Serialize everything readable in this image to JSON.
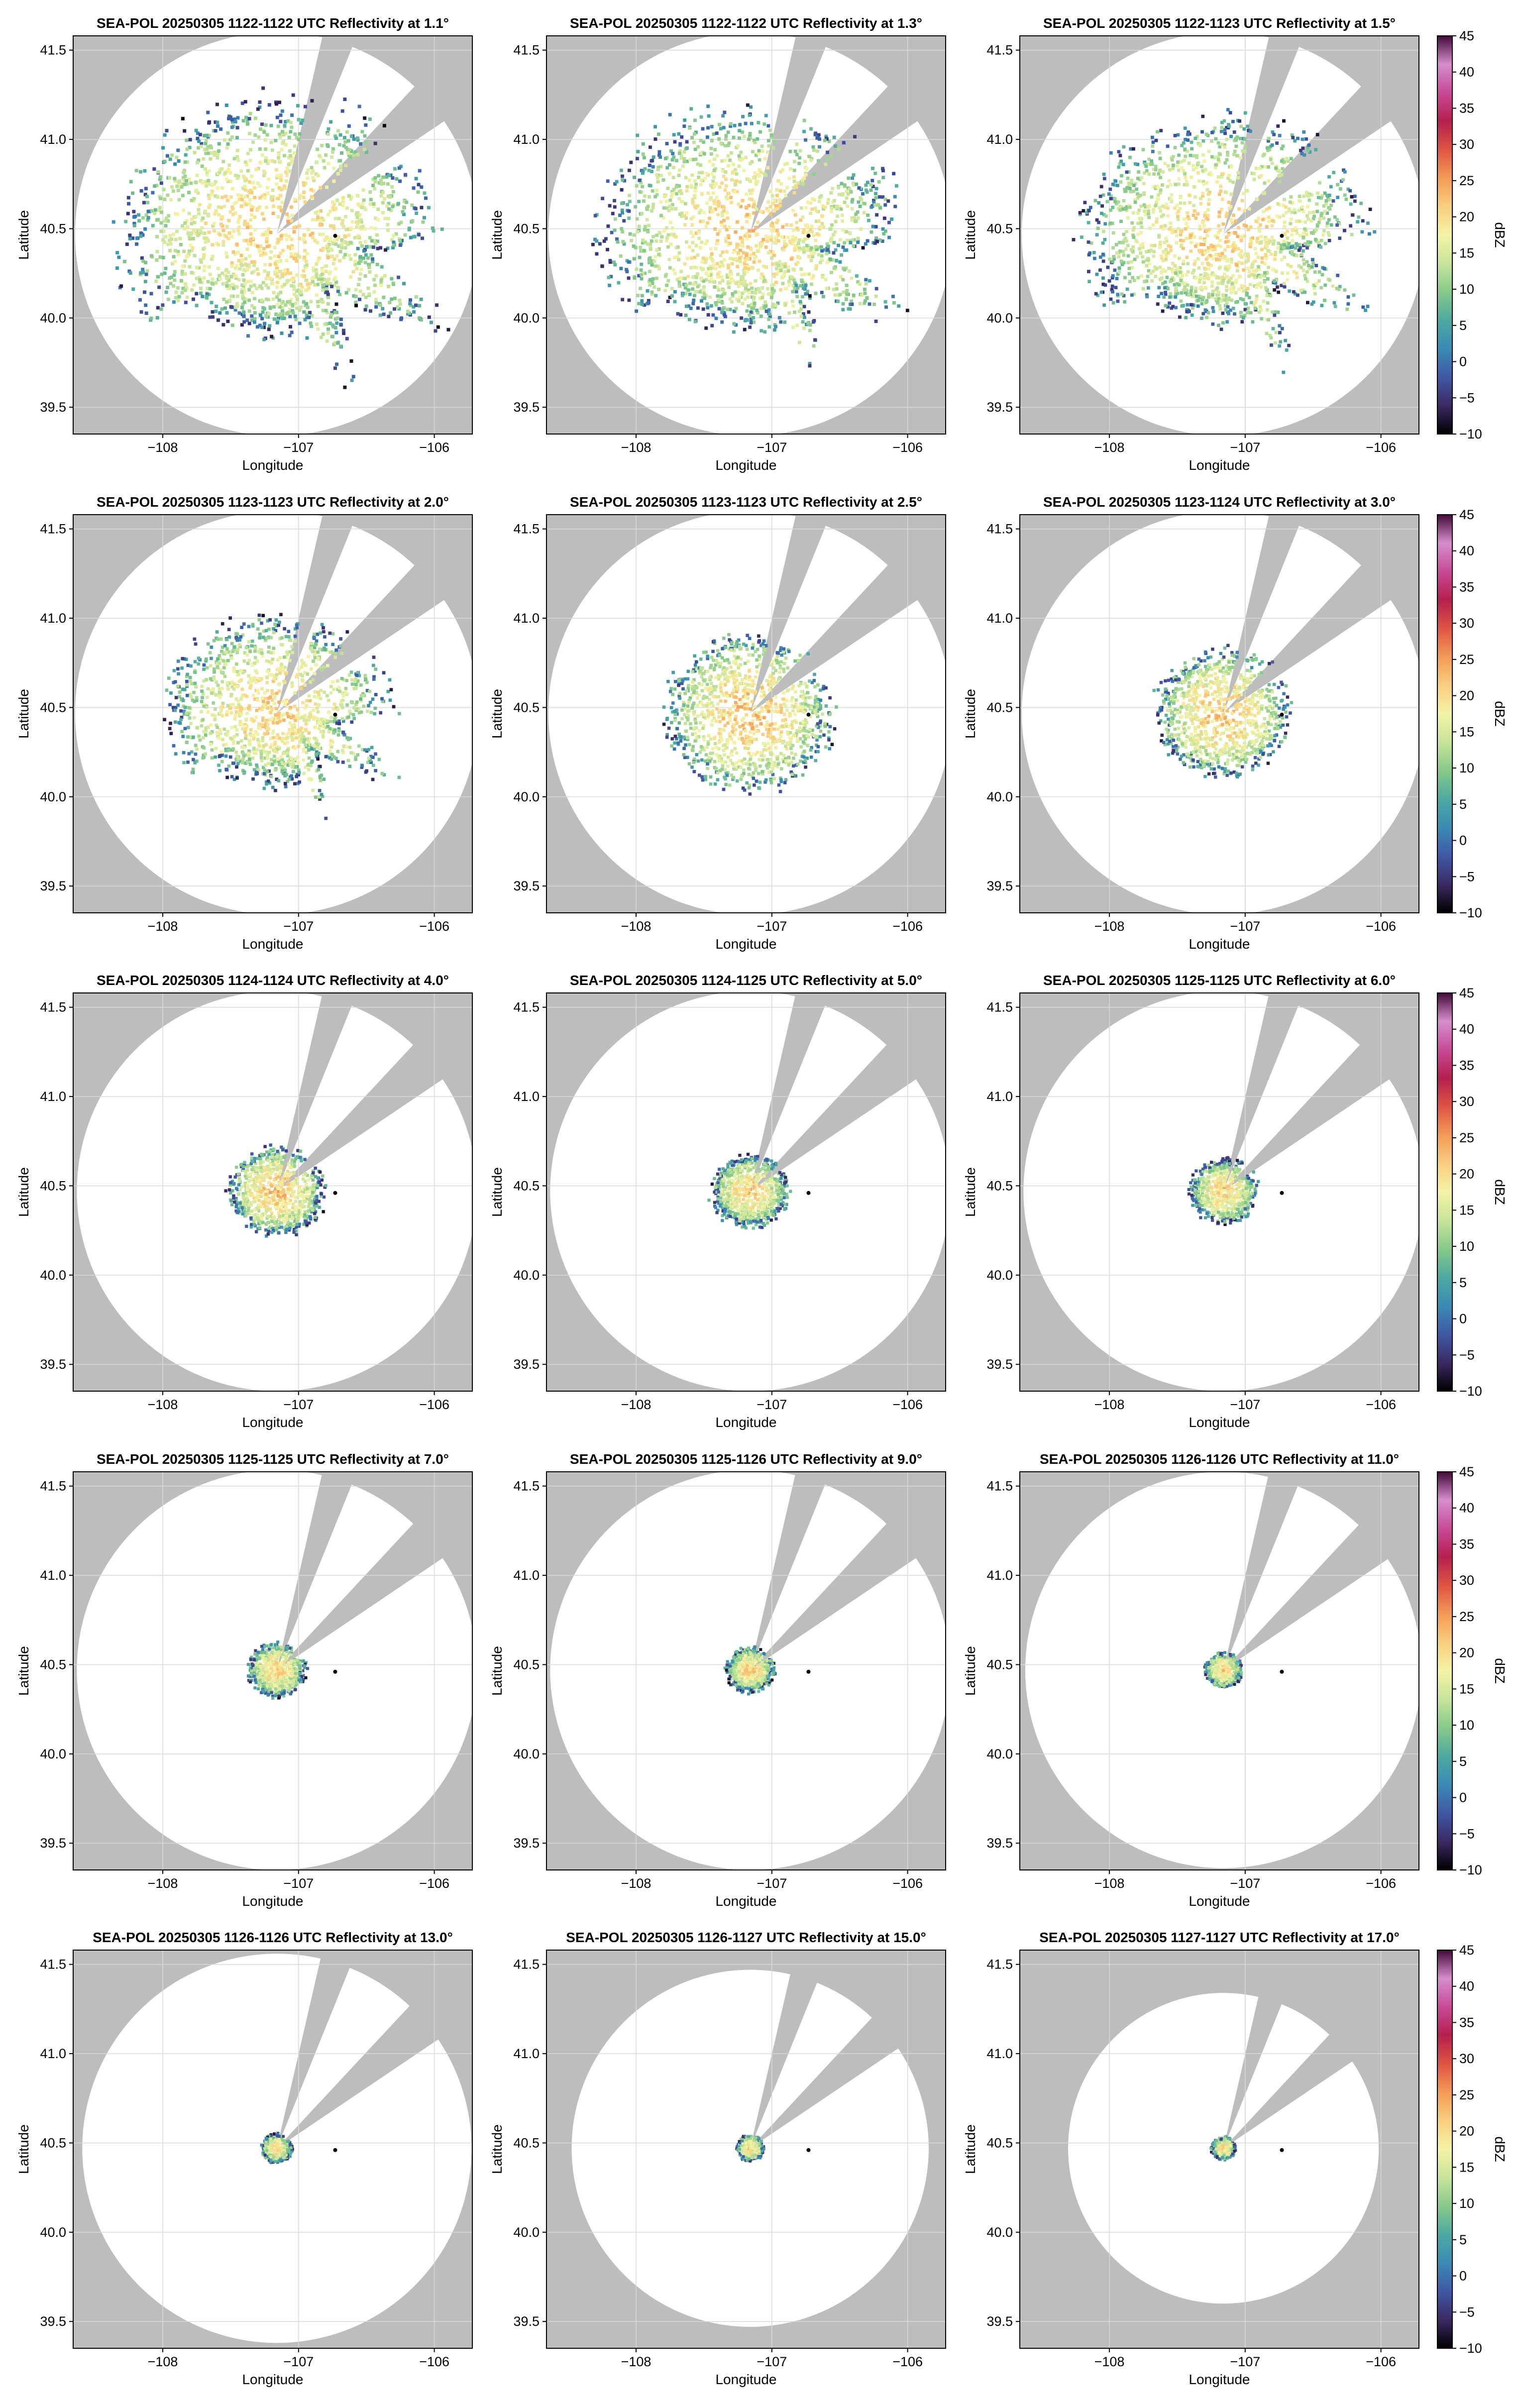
{
  "figure": {
    "shared": {
      "xlabel": "Longitude",
      "ylabel": "Latitude",
      "x_ticks": [
        -108,
        -107,
        -106
      ],
      "x_tick_labels": [
        "−108",
        "−107",
        "−106"
      ],
      "y_ticks": [
        39.5,
        40.0,
        40.5,
        41.0,
        41.5
      ],
      "y_tick_labels": [
        "39.5",
        "40.0",
        "40.5",
        "41.0",
        "41.5"
      ],
      "xlim": [
        -108.66,
        -105.72
      ],
      "ylim": [
        39.35,
        41.58
      ],
      "grid": true,
      "radar_location": [
        -107.16,
        40.47
      ],
      "marker_location": [
        -106.73,
        40.46
      ],
      "blocked_sectors_deg_from_north": [
        [
          13,
          22
        ],
        [
          43,
          56
        ]
      ]
    },
    "colorbar": {
      "label": "dBZ",
      "ticks": [
        45,
        40,
        35,
        30,
        25,
        20,
        15,
        10,
        5,
        0,
        -5,
        -10
      ],
      "tick_labels": [
        "45",
        "40",
        "35",
        "30",
        "25",
        "20",
        "15",
        "10",
        "5",
        "0",
        "−5",
        "−10"
      ],
      "range": [
        -10,
        45
      ],
      "palette": [
        "#000000",
        "#3b2a63",
        "#4058a6",
        "#3a8bb4",
        "#4ca9a0",
        "#86c98b",
        "#c8e49a",
        "#f4f3a6",
        "#f9cf7e",
        "#f39a57",
        "#e05444",
        "#b61f4f",
        "#c84a96",
        "#d58ecb",
        "#43093a"
      ]
    },
    "colors": {
      "background_gray": "#bdbdbd",
      "coverage_white": "#ffffff",
      "axis_frame": "#000000",
      "grid": "#d9d9d9"
    }
  },
  "chart_data": [
    {
      "type": "heatmap",
      "title": "SEA-POL 20250305 1122-1122 UTC Reflectivity at 1.1°",
      "elevation_deg": 1.1,
      "max_range_deg_lat": 1.13,
      "echo_extent_deg": 0.85,
      "dominant_dbz": 17
    },
    {
      "type": "heatmap",
      "title": "SEA-POL 20250305 1122-1122 UTC Reflectivity at 1.3°",
      "elevation_deg": 1.3,
      "max_range_deg_lat": 1.13,
      "echo_extent_deg": 0.8,
      "dominant_dbz": 17
    },
    {
      "type": "heatmap",
      "title": "SEA-POL 20250305 1122-1123 UTC Reflectivity at 1.5°",
      "elevation_deg": 1.5,
      "max_range_deg_lat": 1.13,
      "echo_extent_deg": 0.75,
      "dominant_dbz": 17
    },
    {
      "type": "heatmap",
      "title": "SEA-POL 20250305 1123-1123 UTC Reflectivity at 2.0°",
      "elevation_deg": 2.0,
      "max_range_deg_lat": 1.13,
      "echo_extent_deg": 0.6,
      "dominant_dbz": 17
    },
    {
      "type": "heatmap",
      "title": "SEA-POL 20250305 1123-1123 UTC Reflectivity at 2.5°",
      "elevation_deg": 2.5,
      "max_range_deg_lat": 1.13,
      "echo_extent_deg": 0.5,
      "dominant_dbz": 18
    },
    {
      "type": "heatmap",
      "title": "SEA-POL 20250305 1123-1124 UTC Reflectivity at 3.0°",
      "elevation_deg": 3.0,
      "max_range_deg_lat": 1.13,
      "echo_extent_deg": 0.4,
      "dominant_dbz": 18
    },
    {
      "type": "heatmap",
      "title": "SEA-POL 20250305 1124-1124 UTC Reflectivity at 4.0°",
      "elevation_deg": 4.0,
      "max_range_deg_lat": 1.12,
      "echo_extent_deg": 0.28,
      "dominant_dbz": 18
    },
    {
      "type": "heatmap",
      "title": "SEA-POL 20250305 1124-1125 UTC Reflectivity at 5.0°",
      "elevation_deg": 5.0,
      "max_range_deg_lat": 1.12,
      "echo_extent_deg": 0.23,
      "dominant_dbz": 17
    },
    {
      "type": "heatmap",
      "title": "SEA-POL 20250305 1125-1125 UTC Reflectivity at 6.0°",
      "elevation_deg": 6.0,
      "max_range_deg_lat": 1.12,
      "echo_extent_deg": 0.2,
      "dominant_dbz": 17
    },
    {
      "type": "heatmap",
      "title": "SEA-POL 20250305 1125-1125 UTC Reflectivity at 7.0°",
      "elevation_deg": 7.0,
      "max_range_deg_lat": 1.12,
      "echo_extent_deg": 0.17,
      "dominant_dbz": 17
    },
    {
      "type": "heatmap",
      "title": "SEA-POL 20250305 1125-1126 UTC Reflectivity at 9.0°",
      "elevation_deg": 9.0,
      "max_range_deg_lat": 1.12,
      "echo_extent_deg": 0.14,
      "dominant_dbz": 17
    },
    {
      "type": "heatmap",
      "title": "SEA-POL 20250305 1126-1126 UTC Reflectivity at 11.0°",
      "elevation_deg": 11.0,
      "max_range_deg_lat": 1.11,
      "echo_extent_deg": 0.11,
      "dominant_dbz": 17
    },
    {
      "type": "heatmap",
      "title": "SEA-POL 20250305 1126-1126 UTC Reflectivity at 13.0°",
      "elevation_deg": 13.0,
      "max_range_deg_lat": 1.09,
      "echo_extent_deg": 0.09,
      "dominant_dbz": 17
    },
    {
      "type": "heatmap",
      "title": "SEA-POL 20250305 1126-1127 UTC Reflectivity at 15.0°",
      "elevation_deg": 15.0,
      "max_range_deg_lat": 1.0,
      "echo_extent_deg": 0.08,
      "dominant_dbz": 17
    },
    {
      "type": "heatmap",
      "title": "SEA-POL 20250305 1127-1127 UTC Reflectivity at 17.0°",
      "elevation_deg": 17.0,
      "max_range_deg_lat": 0.87,
      "echo_extent_deg": 0.07,
      "dominant_dbz": 17
    }
  ]
}
